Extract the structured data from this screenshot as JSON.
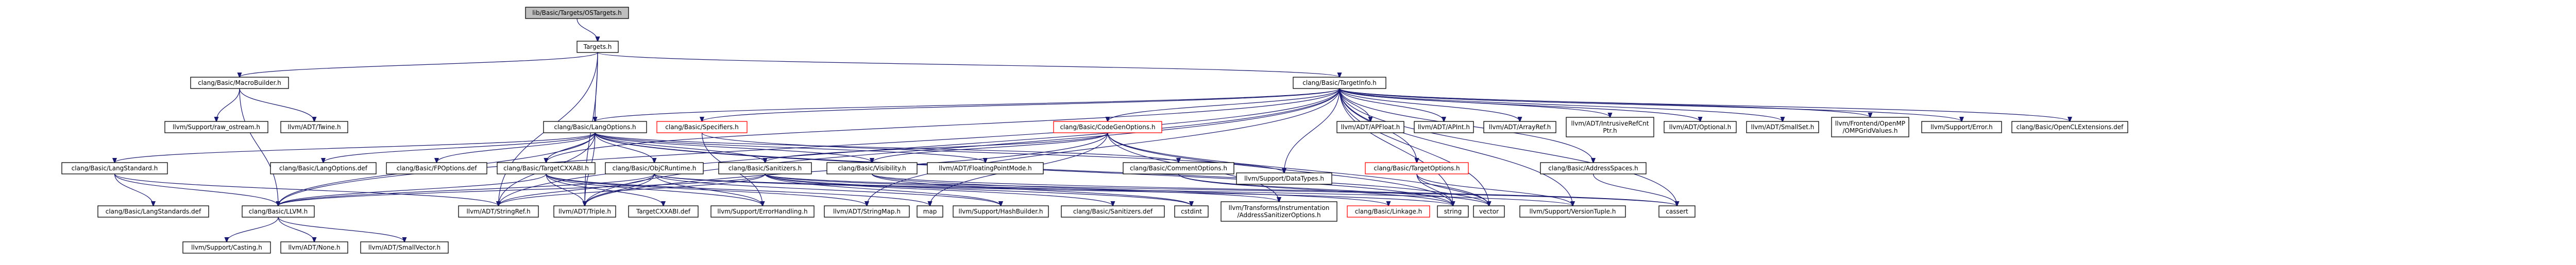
{
  "colors": {
    "edge_default": "#191970",
    "edge_alt": "#404040",
    "node_border": "#000000",
    "node_border_red": "#ff0000",
    "root_fill": "#bfbfbf"
  },
  "nodes": [
    {
      "id": "root",
      "label": "lib/Basic/Targets/OSTargets.h",
      "style": "root"
    },
    {
      "id": "targets",
      "label": "Targets.h"
    },
    {
      "id": "macrobuilder",
      "label": "clang/Basic/MacroBuilder.h"
    },
    {
      "id": "targetinfo",
      "label": "clang/Basic/TargetInfo.h"
    },
    {
      "id": "rawostream",
      "label": "llvm/Support/raw_ostream.h"
    },
    {
      "id": "twine",
      "label": "llvm/ADT/Twine.h"
    },
    {
      "id": "langoptions",
      "label": "clang/Basic/LangOptions.h"
    },
    {
      "id": "specifiers",
      "label": "clang/Basic/Specifiers.h",
      "style": "red"
    },
    {
      "id": "codegenoptions",
      "label": "clang/Basic/CodeGenOptions.h",
      "style": "red"
    },
    {
      "id": "apfloat",
      "label": "llvm/ADT/APFloat.h"
    },
    {
      "id": "apint",
      "label": "llvm/ADT/APInt.h"
    },
    {
      "id": "arrayref",
      "label": "llvm/ADT/ArrayRef.h"
    },
    {
      "id": "intrusiverefcnt",
      "label": "llvm/ADT/IntrusiveRefCnt\nPtr.h"
    },
    {
      "id": "optional",
      "label": "llvm/ADT/Optional.h"
    },
    {
      "id": "smallset",
      "label": "llvm/ADT/SmallSet.h"
    },
    {
      "id": "openmpgrid",
      "label": "llvm/Frontend/OpenMP\n/OMPGridValues.h"
    },
    {
      "id": "supporterror",
      "label": "llvm/Support/Error.h"
    },
    {
      "id": "openclext",
      "label": "clang/Basic/OpenCLExtensions.def"
    },
    {
      "id": "langstandard",
      "label": "clang/Basic/LangStandard.h"
    },
    {
      "id": "langoptionsdef",
      "label": "clang/Basic/LangOptions.def"
    },
    {
      "id": "fpoptionsdef",
      "label": "clang/Basic/FPOptions.def"
    },
    {
      "id": "targetcxxabi",
      "label": "clang/Basic/TargetCXXABI.h"
    },
    {
      "id": "objcruntime",
      "label": "clang/Basic/ObjCRuntime.h"
    },
    {
      "id": "sanitizers",
      "label": "clang/Basic/Sanitizers.h"
    },
    {
      "id": "visibility",
      "label": "clang/Basic/Visibility.h"
    },
    {
      "id": "floatingpointmode",
      "label": "llvm/ADT/FloatingPointMode.h"
    },
    {
      "id": "commentoptions",
      "label": "clang/Basic/CommentOptions.h"
    },
    {
      "id": "datatypes",
      "label": "llvm/Support/DataTypes.h"
    },
    {
      "id": "targetoptions",
      "label": "clang/Basic/TargetOptions.h",
      "style": "red"
    },
    {
      "id": "addressspaces",
      "label": "clang/Basic/AddressSpaces.h"
    },
    {
      "id": "langstandardsdef",
      "label": "clang/Basic/LangStandards.def"
    },
    {
      "id": "llvmh",
      "label": "clang/Basic/LLVM.h"
    },
    {
      "id": "stringref",
      "label": "llvm/ADT/StringRef.h"
    },
    {
      "id": "triple",
      "label": "llvm/ADT/Triple.h"
    },
    {
      "id": "targetcxxabidef",
      "label": "TargetCXXABI.def"
    },
    {
      "id": "errorhandling",
      "label": "llvm/Support/ErrorHandling.h"
    },
    {
      "id": "stringmap",
      "label": "llvm/ADT/StringMap.h"
    },
    {
      "id": "map",
      "label": "map"
    },
    {
      "id": "hashbuilder",
      "label": "llvm/Support/HashBuilder.h"
    },
    {
      "id": "sanitizersdef",
      "label": "clang/Basic/Sanitizers.def"
    },
    {
      "id": "cstdint",
      "label": "cstdint"
    },
    {
      "id": "addresssanitizeroptions",
      "label": "llvm/Transforms/Instrumentation\n/AddressSanitizerOptions.h"
    },
    {
      "id": "linkage",
      "label": "clang/Basic/Linkage.h",
      "style": "red"
    },
    {
      "id": "string",
      "label": "string"
    },
    {
      "id": "vector",
      "label": "vector"
    },
    {
      "id": "versiontuple",
      "label": "llvm/Support/VersionTuple.h"
    },
    {
      "id": "cassert",
      "label": "cassert"
    },
    {
      "id": "casting",
      "label": "llvm/Support/Casting.h"
    },
    {
      "id": "none",
      "label": "llvm/ADT/None.h"
    },
    {
      "id": "smallvector",
      "label": "llvm/ADT/SmallVector.h"
    }
  ],
  "edges": [
    [
      "root",
      "targets"
    ],
    [
      "targets",
      "macrobuilder"
    ],
    [
      "targets",
      "targetinfo"
    ],
    [
      "targets",
      "langoptions"
    ],
    [
      "targets",
      "stringref"
    ],
    [
      "targets",
      "triple"
    ],
    [
      "macrobuilder",
      "rawostream"
    ],
    [
      "macrobuilder",
      "twine"
    ],
    [
      "macrobuilder",
      "llvmh"
    ],
    [
      "targetinfo",
      "langoptions"
    ],
    [
      "targetinfo",
      "specifiers"
    ],
    [
      "targetinfo",
      "codegenoptions"
    ],
    [
      "targetinfo",
      "apfloat"
    ],
    [
      "targetinfo",
      "apint"
    ],
    [
      "targetinfo",
      "arrayref"
    ],
    [
      "targetinfo",
      "intrusiverefcnt"
    ],
    [
      "targetinfo",
      "optional"
    ],
    [
      "targetinfo",
      "smallset"
    ],
    [
      "targetinfo",
      "openmpgrid"
    ],
    [
      "targetinfo",
      "supporterror"
    ],
    [
      "targetinfo",
      "openclext"
    ],
    [
      "targetinfo",
      "targetcxxabi"
    ],
    [
      "targetinfo",
      "datatypes"
    ],
    [
      "targetinfo",
      "targetoptions"
    ],
    [
      "targetinfo",
      "addressspaces"
    ],
    [
      "targetinfo",
      "llvmh"
    ],
    [
      "targetinfo",
      "stringmap"
    ],
    [
      "targetinfo",
      "stringref"
    ],
    [
      "targetinfo",
      "triple"
    ],
    [
      "targetinfo",
      "versiontuple"
    ],
    [
      "targetinfo",
      "cassert"
    ],
    [
      "targetinfo",
      "string"
    ],
    [
      "targetinfo",
      "vector"
    ],
    [
      "langoptions",
      "langstandard"
    ],
    [
      "langoptions",
      "langoptionsdef"
    ],
    [
      "langoptions",
      "fpoptionsdef"
    ],
    [
      "langoptions",
      "targetcxxabi"
    ],
    [
      "langoptions",
      "objcruntime"
    ],
    [
      "langoptions",
      "sanitizers"
    ],
    [
      "langoptions",
      "visibility"
    ],
    [
      "langoptions",
      "floatingpointmode"
    ],
    [
      "langoptions",
      "commentoptions"
    ],
    [
      "langoptions",
      "llvmh"
    ],
    [
      "langoptions",
      "stringref"
    ],
    [
      "langoptions",
      "triple"
    ],
    [
      "langoptions",
      "string"
    ],
    [
      "langoptions",
      "vector"
    ],
    [
      "specifiers",
      "datatypes"
    ],
    [
      "specifiers",
      "errorhandling"
    ],
    [
      "codegenoptions",
      "sanitizers"
    ],
    [
      "codegenoptions",
      "visibility"
    ],
    [
      "codegenoptions",
      "addresssanitizeroptions"
    ],
    [
      "codegenoptions",
      "map"
    ],
    [
      "codegenoptions",
      "string"
    ],
    [
      "codegenoptions",
      "vector"
    ],
    [
      "codegenoptions",
      "triple"
    ],
    [
      "targetoptions",
      "versiontuple"
    ],
    [
      "targetoptions",
      "string"
    ],
    [
      "targetoptions",
      "vector"
    ],
    [
      "addressspaces",
      "cassert"
    ],
    [
      "langstandard",
      "langstandardsdef"
    ],
    [
      "langstandard",
      "llvmh"
    ],
    [
      "langstandard",
      "stringref"
    ],
    [
      "targetcxxabi",
      "llvmh"
    ],
    [
      "targetcxxabi",
      "stringmap"
    ],
    [
      "targetcxxabi",
      "triple"
    ],
    [
      "targetcxxabi",
      "targetcxxabidef"
    ],
    [
      "targetcxxabi",
      "errorhandling"
    ],
    [
      "targetcxxabi",
      "map"
    ],
    [
      "objcruntime",
      "llvmh"
    ],
    [
      "objcruntime",
      "stringref"
    ],
    [
      "objcruntime",
      "triple"
    ],
    [
      "objcruntime",
      "errorhandling"
    ],
    [
      "objcruntime",
      "hashbuilder"
    ],
    [
      "objcruntime",
      "versiontuple"
    ],
    [
      "objcruntime",
      "string"
    ],
    [
      "sanitizers",
      "llvmh"
    ],
    [
      "sanitizers",
      "stringref"
    ],
    [
      "sanitizers",
      "hashbuilder"
    ],
    [
      "sanitizers",
      "sanitizersdef"
    ],
    [
      "sanitizers",
      "cstdint"
    ],
    [
      "sanitizers",
      "addresssanitizeroptions"
    ],
    [
      "sanitizers",
      "cassert"
    ],
    [
      "visibility",
      "linkage"
    ],
    [
      "visibility",
      "cassert"
    ],
    [
      "visibility",
      "cstdint"
    ],
    [
      "commentoptions",
      "string"
    ],
    [
      "commentoptions",
      "vector"
    ],
    [
      "llvmh",
      "casting"
    ],
    [
      "llvmh",
      "none"
    ],
    [
      "llvmh",
      "smallvector"
    ]
  ]
}
